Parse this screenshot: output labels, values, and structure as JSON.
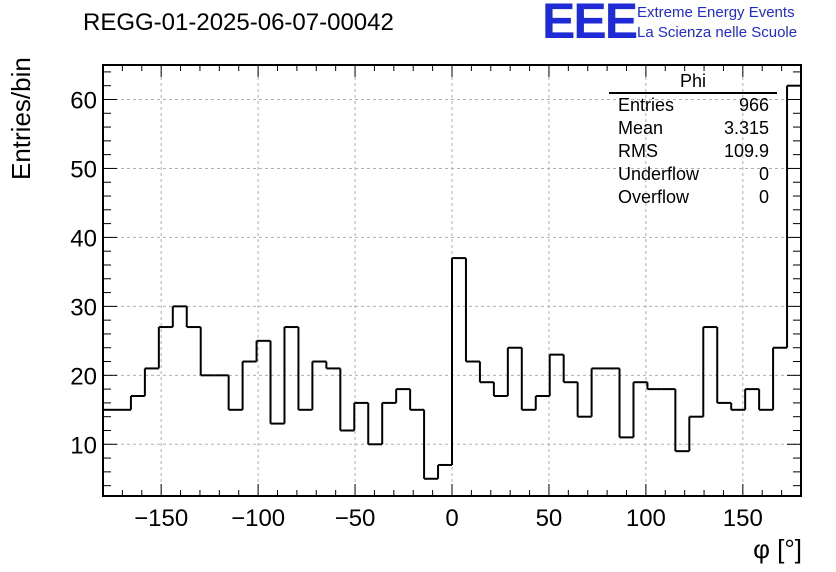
{
  "header": {
    "run_title": "REGG-01-2025-06-07-00042",
    "logo_mark": "EEE",
    "logo_line1": "Extreme Energy Events",
    "logo_line2": "La Scienza nelle Scuole"
  },
  "stats_box": {
    "name": "Phi",
    "rows": [
      {
        "label": "Entries",
        "value": "966"
      },
      {
        "label": "Mean",
        "value": "3.315"
      },
      {
        "label": "RMS",
        "value": "109.9"
      },
      {
        "label": "Underflow",
        "value": "0"
      },
      {
        "label": "Overflow",
        "value": "0"
      }
    ]
  },
  "colors": {
    "line": "#000000",
    "grid": "#b0b0b0",
    "logo": "#1f2bd6"
  },
  "chart_data": {
    "type": "histogram",
    "title": "REGG-01-2025-06-07-00042",
    "xlabel": "φ [°]",
    "ylabel": "Entries/bin",
    "xlim": [
      -180,
      180
    ],
    "ylim": [
      2.5,
      65
    ],
    "bin_width": 7.2,
    "x_ticks": [
      -150,
      -100,
      -50,
      0,
      50,
      100,
      150
    ],
    "x_tick_labels": [
      "−150",
      "−100",
      "−50",
      "0",
      "50",
      "100",
      "150"
    ],
    "y_ticks": [
      10,
      20,
      30,
      40,
      50,
      60
    ],
    "y_tick_labels": [
      "10",
      "20",
      "30",
      "40",
      "50",
      "60"
    ],
    "grid": true,
    "values": [
      15,
      15,
      17,
      21,
      27,
      30,
      27,
      20,
      20,
      15,
      22,
      25,
      13,
      27,
      15,
      22,
      21,
      12,
      16,
      10,
      16,
      18,
      15,
      5,
      7,
      37,
      22,
      19,
      17,
      24,
      15,
      17,
      23,
      19,
      14,
      21,
      21,
      11,
      19,
      18,
      18,
      9,
      14,
      27,
      16,
      15,
      18,
      15,
      24,
      62
    ]
  }
}
